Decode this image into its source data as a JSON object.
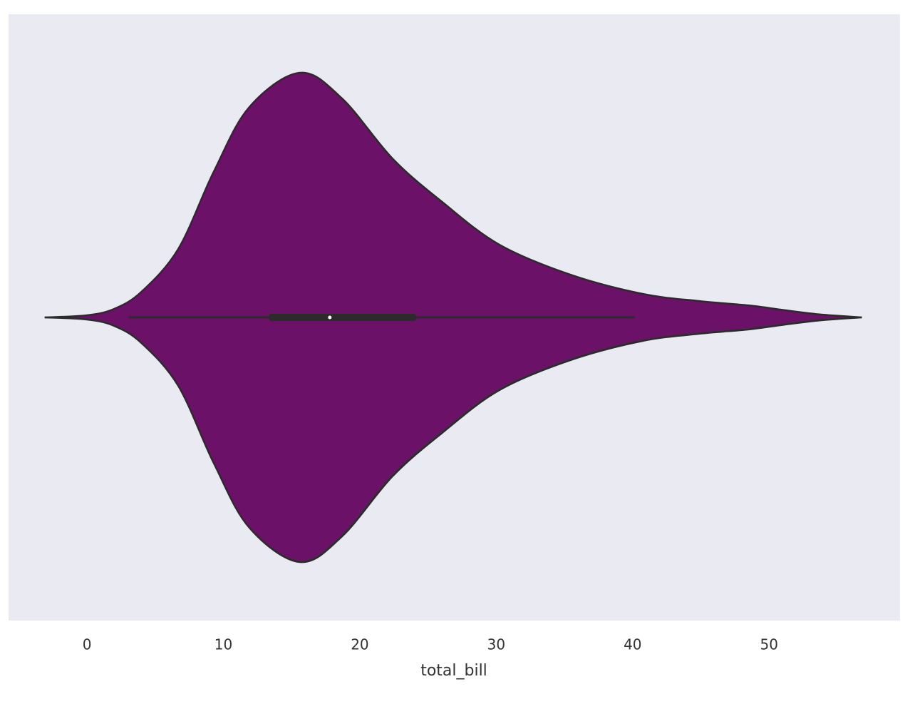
{
  "chart_data": {
    "type": "violin",
    "xlabel": "total_bill",
    "color": "#6b1168",
    "background": "#eaeaf2",
    "grid": false,
    "xlim": [
      -5.75,
      59.6
    ],
    "xticks": [
      0,
      10,
      20,
      30,
      40,
      50
    ],
    "kde": {
      "x": [
        -3.1,
        0,
        2,
        4,
        6.7,
        9.3,
        11.9,
        15.6,
        18.7,
        22.4,
        26,
        30.2,
        35.4,
        40.7,
        44.9,
        48.5,
        51.1,
        53.7,
        56.8
      ],
      "density": [
        0,
        0.0005,
        0.002,
        0.006,
        0.016,
        0.034,
        0.049,
        0.057,
        0.051,
        0.037,
        0.027,
        0.017,
        0.01,
        0.0055,
        0.0038,
        0.0028,
        0.0017,
        0.0007,
        0
      ]
    },
    "box": {
      "whisker_low": 3.07,
      "q1": 13.35,
      "median": 17.8,
      "q3": 24.13,
      "whisker_high": 40.17
    }
  }
}
